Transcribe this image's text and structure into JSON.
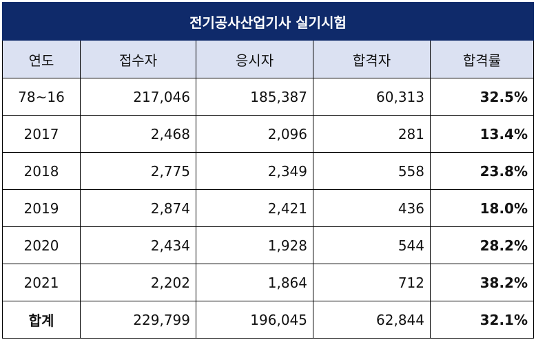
{
  "title": "전기공사산업기사 실기시험",
  "headers": [
    "연도",
    "접수자",
    "응시자",
    "합격자",
    "합격률"
  ],
  "rows": [
    [
      "78~16",
      "217,046",
      "185,387",
      "60,313",
      "32.5%"
    ],
    [
      "2017",
      "2,468",
      "2,096",
      "281",
      "13.4%"
    ],
    [
      "2018",
      "2,775",
      "2,349",
      "558",
      "23.8%"
    ],
    [
      "2019",
      "2,874",
      "2,421",
      "436",
      "18.0%"
    ],
    [
      "2020",
      "2,434",
      "1,928",
      "544",
      "28.2%"
    ],
    [
      "2021",
      "2,202",
      "1,864",
      "712",
      "38.2%"
    ]
  ],
  "total": [
    "합계",
    "229,799",
    "196,045",
    "62,844",
    "32.1%"
  ],
  "colors": {
    "title_bg": "#0f2a6a",
    "header_bg": "#dbe1f2"
  }
}
